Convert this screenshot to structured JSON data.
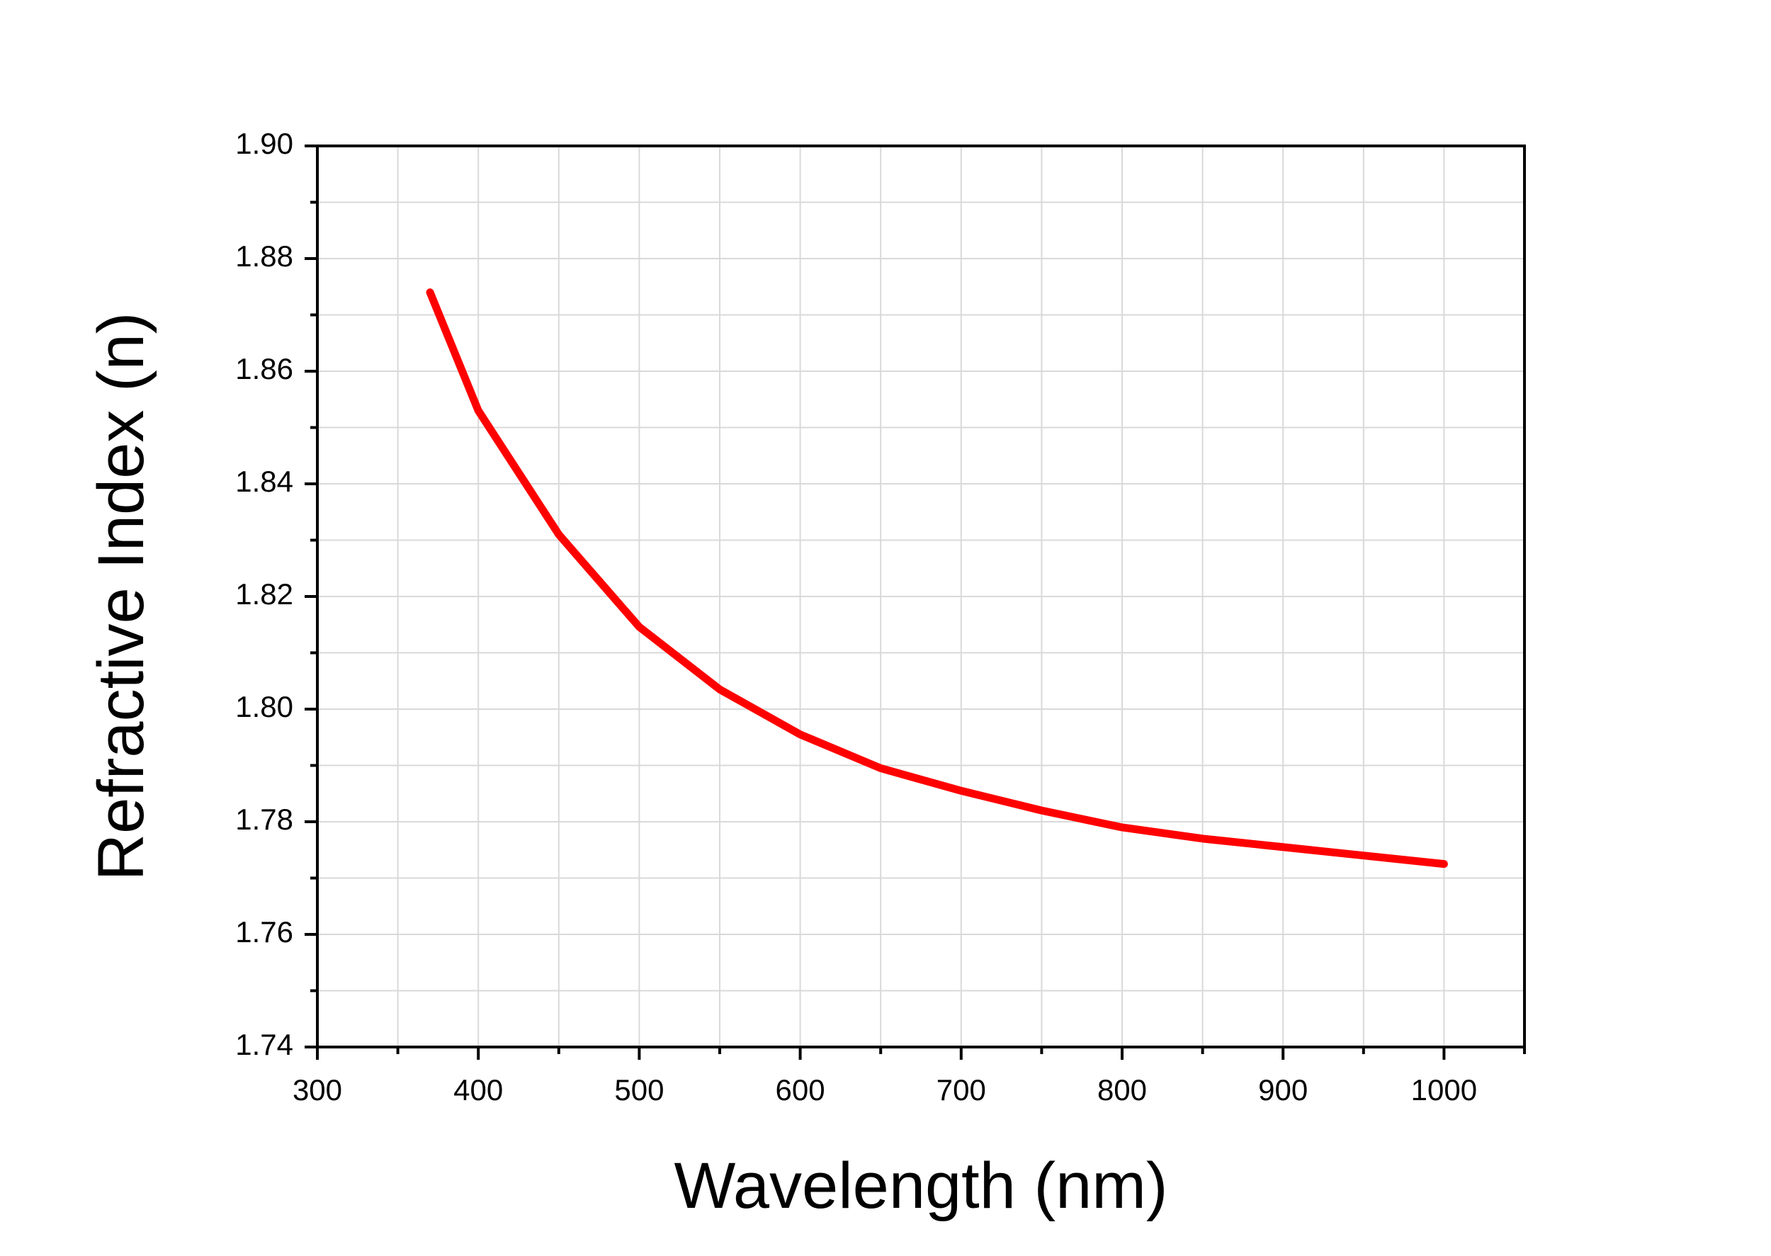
{
  "chart_data": {
    "type": "line",
    "x_label": "Wavelength (nm)",
    "y_label": "Refractive Index (n)",
    "x": [
      370,
      400,
      450,
      500,
      550,
      600,
      650,
      700,
      750,
      800,
      850,
      900,
      950,
      1000
    ],
    "series": [
      {
        "color": "#ff0000",
        "values": [
          1.874,
          1.853,
          1.831,
          1.8146,
          1.8035,
          1.7955,
          1.7895,
          1.7855,
          1.782,
          1.779,
          1.777,
          1.7755,
          1.774,
          1.7725
        ]
      }
    ],
    "xlim": [
      300,
      1050
    ],
    "xticks": [
      300,
      400,
      500,
      600,
      700,
      800,
      900,
      1000
    ],
    "xminorticks": [
      350,
      450,
      550,
      650,
      750,
      850,
      950,
      1050
    ],
    "ylim": [
      1.74,
      1.9
    ],
    "yticks": [
      {
        "value": 1.74,
        "label": "1.74"
      },
      {
        "value": 1.76,
        "label": "1.76"
      },
      {
        "value": 1.78,
        "label": "1.78"
      },
      {
        "value": 1.8,
        "label": "1.80"
      },
      {
        "value": 1.82,
        "label": "1.82"
      },
      {
        "value": 1.84,
        "label": "1.84"
      },
      {
        "value": 1.86,
        "label": "1.86"
      },
      {
        "value": 1.88,
        "label": "1.88"
      },
      {
        "value": 1.9,
        "label": "1.90"
      }
    ],
    "yminorticks": [
      1.75,
      1.77,
      1.79,
      1.81,
      1.83,
      1.85,
      1.87,
      1.89
    ],
    "grid": true
  }
}
